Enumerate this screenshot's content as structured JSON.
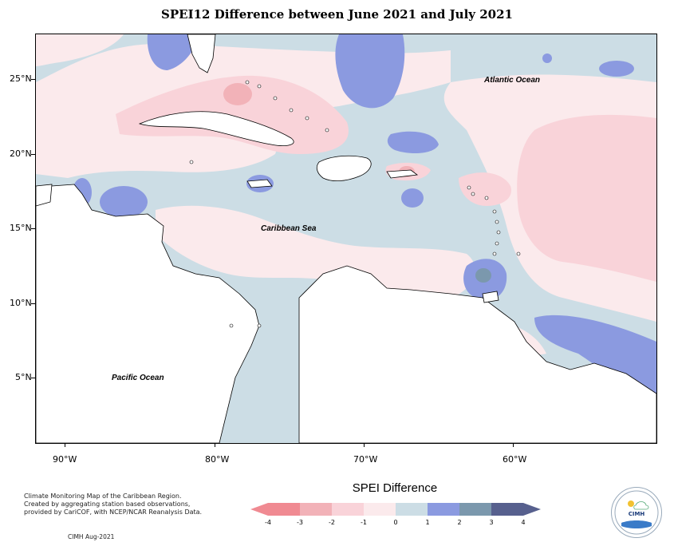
{
  "title": "SPEI12 Difference between June 2021 and July 2021",
  "map": {
    "lat_labels": [
      "25°N",
      "20°N",
      "15°N",
      "10°N",
      "5°N"
    ],
    "lon_labels": [
      "90°W",
      "80°W",
      "70°W",
      "60°W"
    ],
    "ocean_labels": {
      "atlantic": "Atlantic Ocean",
      "caribbean": "Caribbean Sea",
      "pacific": "Pacific Ocean"
    },
    "colors": {
      "sea_background": "#ccdde5",
      "land": "#ffffff",
      "coastline": "#000000"
    }
  },
  "notes": {
    "line1": "Climate Monitoring Map of the Caribbean Region.",
    "line2": "Created by aggregating station based observations,",
    "line3": "provided by CariCOF, with NCEP/NCAR Reanalysis Data.",
    "credit": "CIMH Aug-2021"
  },
  "legend": {
    "title": "SPEI Difference",
    "ticks": [
      "-4",
      "-3",
      "-2",
      "-1",
      "0",
      "1",
      "2",
      "3",
      "4"
    ],
    "colors": [
      "#f08a92",
      "#f2b2b8",
      "#f9d3d9",
      "#fbeaec",
      "#ccdde5",
      "#8b9ae0",
      "#7b98ad",
      "#57608e"
    ]
  },
  "logo": {
    "text": "CIMH",
    "icon": "cimh-logo-icon"
  }
}
